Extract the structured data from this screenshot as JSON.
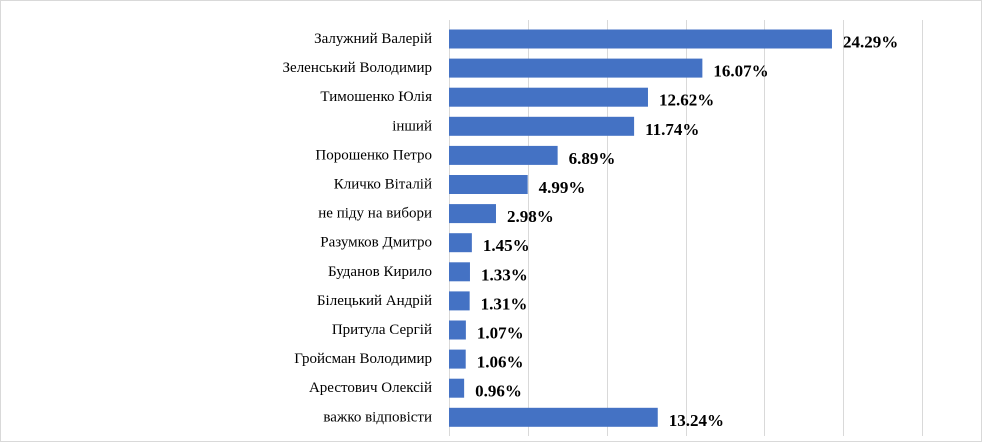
{
  "chart_data": {
    "type": "bar",
    "orientation": "horizontal",
    "title": "",
    "xlabel": "",
    "ylabel": "",
    "xlim": [
      0,
      30
    ],
    "grid": true,
    "legend": "none",
    "bar_color": "#4472c4",
    "categories": [
      "Залужний Валерій",
      "Зеленський Володимир",
      "Тимошенко Юлія",
      "інший",
      "Порошенко Петро",
      "Кличко Віталій",
      "не піду на вибори",
      "Разумков Дмитро",
      "Буданов Кирило",
      "Білецький Андрій",
      "Притула Сергій",
      "Гройсман Володимир",
      "Арестович Олексій",
      "важко відповісти"
    ],
    "values": [
      24.29,
      16.07,
      12.62,
      11.74,
      6.89,
      4.99,
      2.98,
      1.45,
      1.33,
      1.31,
      1.07,
      1.06,
      0.96,
      13.24
    ],
    "data_labels": [
      "24.29%",
      "16.07%",
      "12.62%",
      "11.74%",
      "6.89%",
      "4.99%",
      "2.98%",
      "1.45%",
      "1.33%",
      "1.31%",
      "1.07%",
      "1.06%",
      "0.96%",
      "13.24%"
    ]
  }
}
